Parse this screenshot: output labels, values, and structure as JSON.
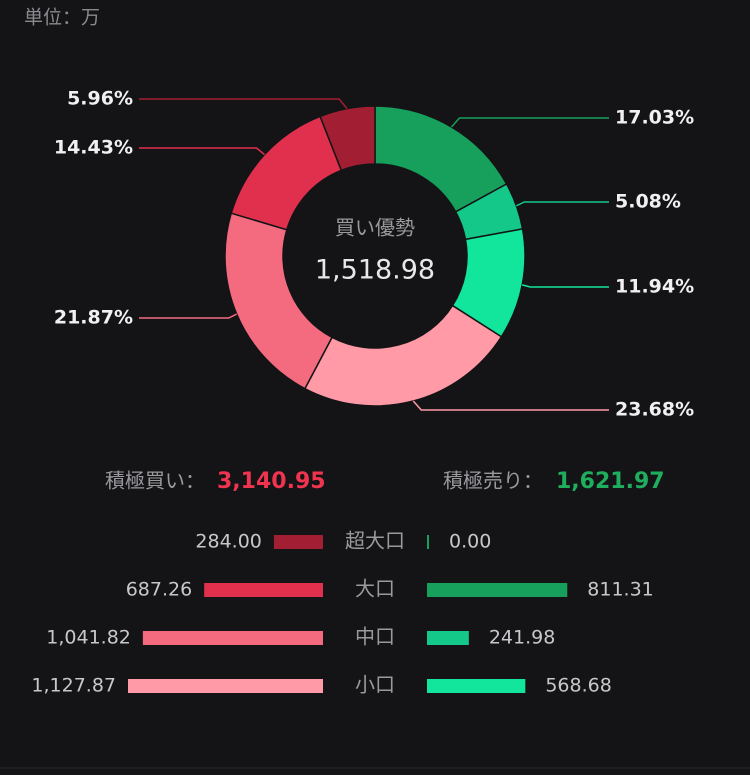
{
  "unit": "単位：万",
  "chart_data": [
    {
      "type": "pie",
      "center_title": "買い優勢",
      "center_value": "1,518.98",
      "values": [
        17.03,
        5.08,
        11.94,
        23.68,
        21.87,
        14.43,
        5.96
      ],
      "value_labels": [
        "17.03%",
        "5.08%",
        "11.94%",
        "23.68%",
        "21.87%",
        "14.43%",
        "5.96%"
      ],
      "colors": [
        "#17a05b",
        "#14c88a",
        "#12e59c",
        "#ff9aa6",
        "#f46b80",
        "#e1304e",
        "#a21f33"
      ]
    },
    {
      "type": "bar",
      "categories": [
        "超大口",
        "大口",
        "中口",
        "小口"
      ],
      "series": [
        {
          "name": "積極買い：",
          "total": 3140.95,
          "total_label": "3,140.95",
          "color": "#f0344f",
          "colors": [
            "#a21f33",
            "#e1304e",
            "#f46b80",
            "#ff9aa6"
          ],
          "values": [
            284.0,
            687.26,
            1041.82,
            1127.87
          ],
          "value_labels": [
            "284.00",
            "687.26",
            "1,041.82",
            "1,127.87"
          ]
        },
        {
          "name": "積極売り：",
          "total": 1621.97,
          "total_label": "1,621.97",
          "color": "#1fae5e",
          "colors": [
            "#17a05b",
            "#17a05b",
            "#14c88a",
            "#12e59c"
          ],
          "values": [
            0.0,
            811.31,
            241.98,
            568.68
          ],
          "value_labels": [
            "0.00",
            "811.31",
            "241.98",
            "568.68"
          ]
        }
      ]
    }
  ]
}
